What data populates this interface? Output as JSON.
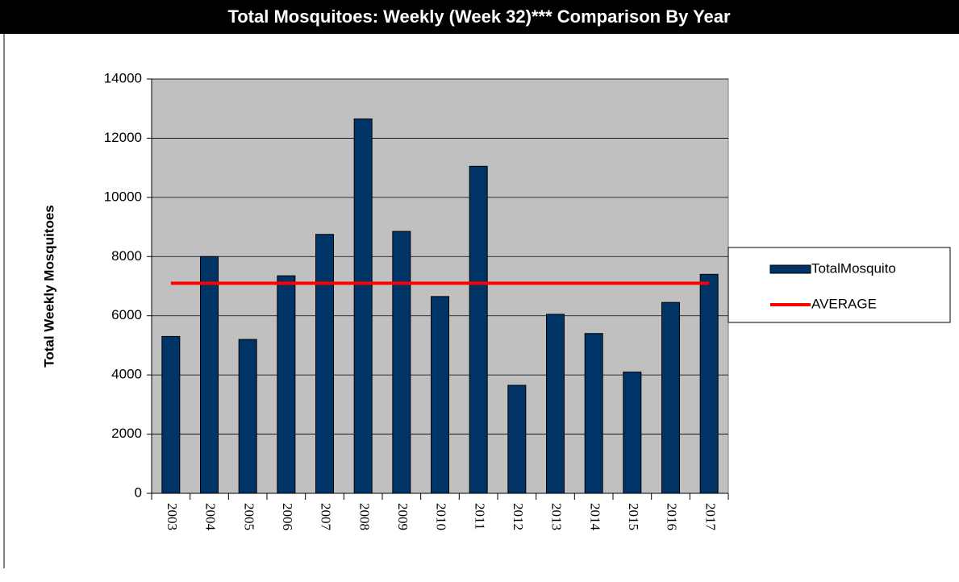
{
  "chart_data": {
    "type": "bar",
    "title": "Total Mosquitoes: Weekly (Week 32)*** Comparison By Year",
    "y_label": "Total Weekly Mosquitoes",
    "categories": [
      "2003",
      "2004",
      "2005",
      "2006",
      "2007",
      "2008",
      "2009",
      "2010",
      "2011",
      "2012",
      "2013",
      "2014",
      "2015",
      "2016",
      "2017"
    ],
    "series": [
      {
        "name": "TotalMosquito",
        "type": "bar",
        "color": "#003366",
        "values": [
          5300,
          8000,
          5200,
          7350,
          8750,
          12650,
          8850,
          6650,
          11050,
          3650,
          6050,
          5400,
          4100,
          6450,
          7400
        ]
      },
      {
        "name": "AVERAGE",
        "type": "line",
        "color": "#ff0000",
        "values": [
          7100,
          7100,
          7100,
          7100,
          7100,
          7100,
          7100,
          7100,
          7100,
          7100,
          7100,
          7100,
          7100,
          7100,
          7100
        ]
      }
    ],
    "ylim": [
      0,
      14000
    ],
    "yticks": [
      0,
      2000,
      4000,
      6000,
      8000,
      10000,
      12000,
      14000
    ],
    "grid": true,
    "legend": "right"
  }
}
